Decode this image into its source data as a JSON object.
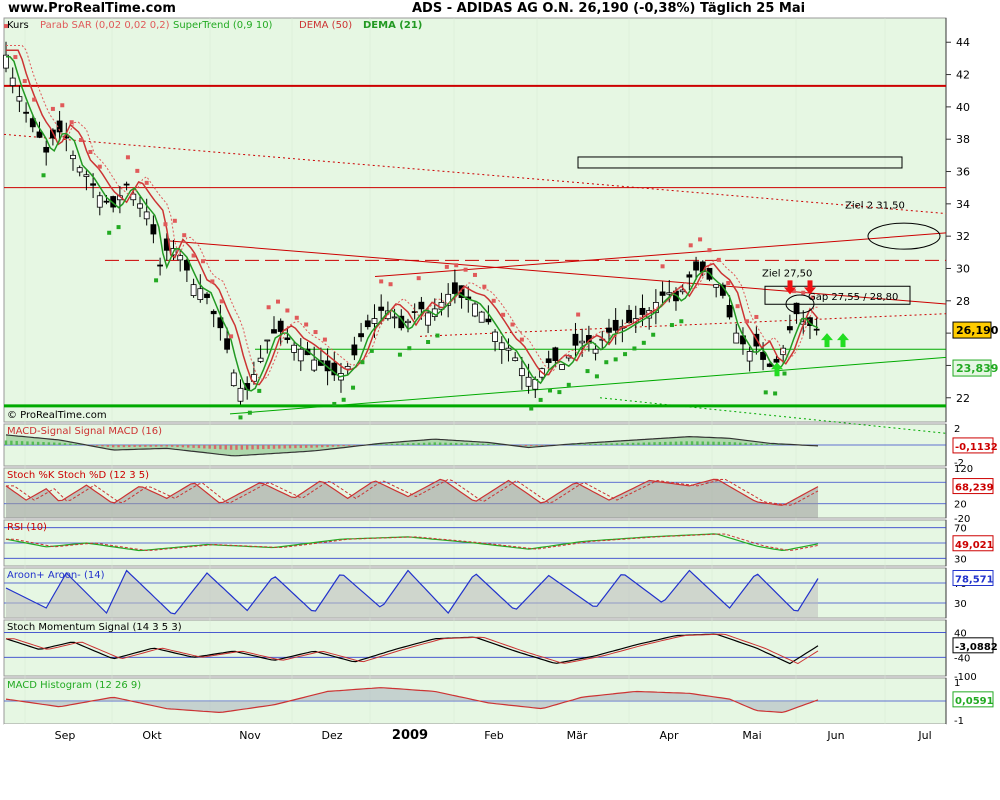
{
  "header": {
    "site": "www.ProRealTime.com",
    "title": "ADS - ADIDAS AG O.N.    26,190 (-0,38%)    Täglich  25 Mai"
  },
  "colors": {
    "panel_bg": "#e6f7e3",
    "candle_up": "#ffffff",
    "candle_down": "#000000",
    "sar": "#e05a5a",
    "supertrend": "#22aa22",
    "dema50": "#cc3333",
    "dema21": "#229922",
    "support": "#00aa00",
    "resistance": "#cc0000",
    "arrow_up": "#22dd22",
    "arrow_down": "#ee1111",
    "price_badge": "#ffcc00"
  },
  "chart_data": [
    {
      "type": "candlestick",
      "panel": "price",
      "legend": [
        "Kurs",
        "Parab SAR (0,02 0,02 0,2)",
        "SuperTrend (0,9 10)",
        "DEMA (50)",
        "DEMA (21)"
      ],
      "x_ticks": [
        "Sep",
        "Okt",
        "Nov",
        "Dez",
        "2009",
        "Feb",
        "Mär",
        "Apr",
        "Mai",
        "Jun",
        "Jul"
      ],
      "y_ticks": [
        22,
        24,
        26,
        28,
        30,
        32,
        34,
        36,
        38,
        40,
        42,
        44
      ],
      "ylim": [
        20.5,
        45.5
      ],
      "current_price": "26,190",
      "supertrend_value": "23,839",
      "annotations": [
        "Ziel 2   31,50",
        "Ziel 27,50",
        "Gap 27,55 / 28,80"
      ],
      "footer": "© ProRealTime.com",
      "close_profile": [
        [
          0,
          43.2
        ],
        [
          6,
          41.5
        ],
        [
          12,
          40.2
        ],
        [
          18,
          39.0
        ],
        [
          24,
          38.3
        ],
        [
          30,
          37.2
        ],
        [
          38,
          38.6
        ],
        [
          46,
          38.0
        ],
        [
          52,
          36.5
        ],
        [
          60,
          35.8
        ],
        [
          70,
          34.5
        ],
        [
          80,
          33.8
        ],
        [
          90,
          35.2
        ],
        [
          100,
          34.0
        ],
        [
          108,
          33.2
        ],
        [
          114,
          30.0
        ],
        [
          122,
          31.5
        ],
        [
          130,
          30.8
        ],
        [
          140,
          29.0
        ],
        [
          148,
          28.6
        ],
        [
          156,
          27.0
        ],
        [
          162,
          26.0
        ],
        [
          168,
          24.0
        ],
        [
          174,
          22.6
        ],
        [
          180,
          22.5
        ],
        [
          188,
          24.0
        ],
        [
          196,
          25.8
        ],
        [
          204,
          26.2
        ],
        [
          212,
          25.4
        ],
        [
          220,
          25.0
        ],
        [
          226,
          24.6
        ],
        [
          232,
          24.2
        ],
        [
          238,
          23.8
        ],
        [
          244,
          23.4
        ],
        [
          250,
          23.5
        ],
        [
          258,
          24.2
        ],
        [
          266,
          26.0
        ],
        [
          274,
          26.8
        ],
        [
          282,
          27.6
        ],
        [
          290,
          27.0
        ],
        [
          296,
          26.2
        ],
        [
          302,
          27.0
        ],
        [
          308,
          27.6
        ],
        [
          316,
          27.2
        ],
        [
          324,
          27.8
        ],
        [
          332,
          28.6
        ],
        [
          340,
          28.2
        ],
        [
          348,
          28.0
        ],
        [
          356,
          27.2
        ],
        [
          364,
          26.2
        ],
        [
          370,
          25.4
        ],
        [
          376,
          25.0
        ],
        [
          382,
          24.2
        ],
        [
          388,
          23.4
        ],
        [
          394,
          23.0
        ],
        [
          400,
          23.8
        ],
        [
          408,
          24.4
        ],
        [
          416,
          24.0
        ],
        [
          424,
          25.2
        ],
        [
          432,
          25.6
        ],
        [
          440,
          25.0
        ],
        [
          448,
          26.0
        ],
        [
          456,
          26.2
        ],
        [
          464,
          26.6
        ],
        [
          472,
          27.0
        ],
        [
          480,
          27.4
        ],
        [
          488,
          28.2
        ],
        [
          494,
          28.6
        ],
        [
          500,
          28.0
        ],
        [
          506,
          28.8
        ],
        [
          512,
          29.8
        ],
        [
          518,
          30.0
        ],
        [
          524,
          29.4
        ],
        [
          530,
          29.0
        ],
        [
          536,
          28.2
        ],
        [
          542,
          26.4
        ],
        [
          548,
          25.6
        ],
        [
          554,
          24.8
        ],
        [
          560,
          25.2
        ],
        [
          566,
          24.2
        ],
        [
          572,
          23.8
        ],
        [
          578,
          24.6
        ],
        [
          584,
          26.0
        ],
        [
          590,
          27.2
        ],
        [
          596,
          26.6
        ],
        [
          602,
          26.4
        ],
        [
          606,
          26.19
        ]
      ]
    },
    {
      "type": "area",
      "panel": "macd_signal",
      "legend": "MACD-Signal Signal MACD (16)",
      "last_value": "-0,1132",
      "y_ticks": [
        "2",
        "0",
        "-2"
      ],
      "profile": [
        [
          0,
          1.2
        ],
        [
          40,
          0.6
        ],
        [
          80,
          -0.6
        ],
        [
          120,
          -0.4
        ],
        [
          170,
          -1.3
        ],
        [
          230,
          -0.7
        ],
        [
          280,
          0.2
        ],
        [
          320,
          0.7
        ],
        [
          360,
          0.3
        ],
        [
          390,
          -0.3
        ],
        [
          420,
          0.1
        ],
        [
          460,
          0.5
        ],
        [
          510,
          1.0
        ],
        [
          540,
          0.8
        ],
        [
          570,
          0.2
        ],
        [
          606,
          -0.11
        ]
      ]
    },
    {
      "type": "line",
      "panel": "stochastic",
      "legend": "Stoch %K Stoch %D (12 3 5)",
      "last_value": "68,239",
      "y_ticks": [
        "120",
        "80",
        "20",
        "-20"
      ],
      "profile": [
        [
          0,
          70
        ],
        [
          15,
          30
        ],
        [
          30,
          62
        ],
        [
          40,
          25
        ],
        [
          60,
          72
        ],
        [
          80,
          20
        ],
        [
          100,
          70
        ],
        [
          120,
          35
        ],
        [
          140,
          80
        ],
        [
          160,
          20
        ],
        [
          190,
          80
        ],
        [
          215,
          35
        ],
        [
          235,
          85
        ],
        [
          255,
          35
        ],
        [
          275,
          85
        ],
        [
          300,
          40
        ],
        [
          325,
          90
        ],
        [
          350,
          25
        ],
        [
          375,
          85
        ],
        [
          400,
          20
        ],
        [
          425,
          80
        ],
        [
          450,
          30
        ],
        [
          480,
          85
        ],
        [
          510,
          70
        ],
        [
          530,
          90
        ],
        [
          560,
          25
        ],
        [
          580,
          15
        ],
        [
          606,
          68
        ]
      ]
    },
    {
      "type": "line",
      "panel": "rsi",
      "legend": "RSI (10)",
      "last_value": "49,021",
      "y_ticks": [
        "70",
        "50",
        "30"
      ],
      "profile": [
        [
          0,
          55
        ],
        [
          30,
          45
        ],
        [
          60,
          50
        ],
        [
          100,
          40
        ],
        [
          150,
          48
        ],
        [
          200,
          44
        ],
        [
          250,
          55
        ],
        [
          300,
          58
        ],
        [
          350,
          50
        ],
        [
          390,
          42
        ],
        [
          430,
          52
        ],
        [
          480,
          58
        ],
        [
          530,
          62
        ],
        [
          560,
          46
        ],
        [
          580,
          40
        ],
        [
          606,
          49
        ]
      ]
    },
    {
      "type": "area",
      "panel": "aroon",
      "legend": "Aroon+ Aroon- (14)",
      "last_value": "78,571",
      "y_ticks": [
        "70",
        "30"
      ],
      "profile": [
        [
          0,
          60
        ],
        [
          30,
          20
        ],
        [
          45,
          90
        ],
        [
          75,
          10
        ],
        [
          90,
          95
        ],
        [
          125,
          5
        ],
        [
          150,
          90
        ],
        [
          180,
          15
        ],
        [
          200,
          85
        ],
        [
          230,
          10
        ],
        [
          250,
          90
        ],
        [
          280,
          20
        ],
        [
          300,
          95
        ],
        [
          330,
          10
        ],
        [
          350,
          90
        ],
        [
          380,
          15
        ],
        [
          405,
          85
        ],
        [
          440,
          20
        ],
        [
          460,
          90
        ],
        [
          490,
          30
        ],
        [
          510,
          95
        ],
        [
          540,
          20
        ],
        [
          560,
          90
        ],
        [
          590,
          10
        ],
        [
          606,
          79
        ]
      ]
    },
    {
      "type": "line",
      "panel": "stoch_momentum",
      "legend": "Stoch Momentum  Signal (14 3 5 3)",
      "last_value": "-3,0882",
      "y_ticks": [
        "40",
        "-40",
        "-100"
      ],
      "profile": [
        [
          0,
          20
        ],
        [
          25,
          -15
        ],
        [
          50,
          10
        ],
        [
          80,
          -45
        ],
        [
          110,
          -10
        ],
        [
          140,
          -40
        ],
        [
          170,
          -20
        ],
        [
          200,
          -50
        ],
        [
          230,
          -20
        ],
        [
          260,
          -55
        ],
        [
          290,
          -15
        ],
        [
          320,
          20
        ],
        [
          350,
          25
        ],
        [
          380,
          -20
        ],
        [
          410,
          -60
        ],
        [
          440,
          -35
        ],
        [
          470,
          0
        ],
        [
          500,
          30
        ],
        [
          530,
          35
        ],
        [
          560,
          -10
        ],
        [
          585,
          -60
        ],
        [
          606,
          -3
        ]
      ]
    },
    {
      "type": "area",
      "panel": "macd_histogram",
      "legend": "MACD Histogram (12 26 9)",
      "last_value": "0,0591",
      "y_ticks": [
        "1",
        "-1"
      ],
      "profile": [
        [
          0,
          0.1
        ],
        [
          40,
          -0.3
        ],
        [
          80,
          0.2
        ],
        [
          120,
          -0.4
        ],
        [
          160,
          -0.6
        ],
        [
          200,
          -0.2
        ],
        [
          240,
          0.5
        ],
        [
          280,
          0.7
        ],
        [
          320,
          0.5
        ],
        [
          360,
          -0.1
        ],
        [
          400,
          -0.4
        ],
        [
          430,
          0.2
        ],
        [
          470,
          0.5
        ],
        [
          510,
          0.4
        ],
        [
          540,
          0.1
        ],
        [
          560,
          -0.5
        ],
        [
          580,
          -0.6
        ],
        [
          606,
          0.06
        ]
      ]
    }
  ]
}
